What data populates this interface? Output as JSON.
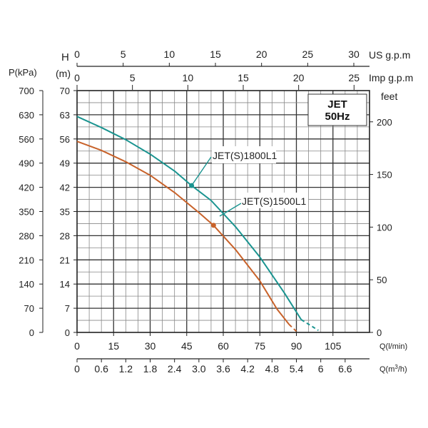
{
  "chart_data": {
    "type": "line",
    "title_line1": "JET",
    "title_line2": "50Hz",
    "axis_labels": {
      "pressure": "P(kPa)",
      "head_h": "H",
      "head_m": "(m)",
      "feet": "feet",
      "us_gpm": "US g.p.m",
      "imp_gpm": "Imp g.p.m",
      "q_lmin": "Q(l/min)",
      "q_m3h_prefix": "Q(m",
      "q_m3h_sup": "3",
      "q_m3h_suffix": "/h)"
    },
    "xlim": [
      0,
      120
    ],
    "ylim": [
      0,
      70
    ],
    "x_ticks_lmin": [
      "0",
      "15",
      "30",
      "45",
      "60",
      "75",
      "90",
      "105"
    ],
    "x_ticks_m3h": [
      "0",
      "0.6",
      "1.2",
      "1.8",
      "2.4",
      "3.0",
      "3.6",
      "4.2",
      "4.8",
      "5.4",
      "6",
      "6.6"
    ],
    "y_ticks_m": [
      "0",
      "7",
      "14",
      "21",
      "28",
      "35",
      "42",
      "49",
      "56",
      "63",
      "70"
    ],
    "y_ticks_kpa": [
      "0",
      "70",
      "140",
      "210",
      "280",
      "350",
      "420",
      "490",
      "560",
      "630",
      "700"
    ],
    "y_ticks_feet": [
      "0",
      "50",
      "100",
      "150",
      "200"
    ],
    "top_ticks_us": [
      "0",
      "5",
      "10",
      "15",
      "20",
      "25",
      "30"
    ],
    "top_ticks_imp": [
      "0",
      "5",
      "10",
      "15",
      "20",
      "25"
    ],
    "series": [
      {
        "name": "JET(S)1800L1",
        "color": "#1a9490",
        "x": [
          0,
          10,
          20,
          30,
          40,
          47,
          55,
          65,
          75,
          85,
          92
        ],
        "y": [
          62.5,
          59.3,
          55.8,
          51.6,
          46.7,
          42.5,
          38.2,
          30.6,
          21.8,
          11.5,
          3.7
        ],
        "dashed_x": [
          92,
          99
        ],
        "dashed_y": [
          3.7,
          0.6
        ],
        "marker": [
          47,
          42.5
        ]
      },
      {
        "name": "JET(S)1500L1",
        "color": "#c8622a",
        "x": [
          0,
          10,
          20,
          30,
          40,
          50,
          56,
          65,
          75,
          82,
          87
        ],
        "y": [
          55.3,
          52.7,
          49.4,
          45.5,
          40.5,
          34.7,
          31.0,
          24.0,
          14.9,
          6.8,
          2.3
        ],
        "dashed_x": [
          87,
          90
        ],
        "dashed_y": [
          2.3,
          0.3
        ],
        "marker": [
          56,
          31.0
        ]
      }
    ],
    "grid": true
  }
}
